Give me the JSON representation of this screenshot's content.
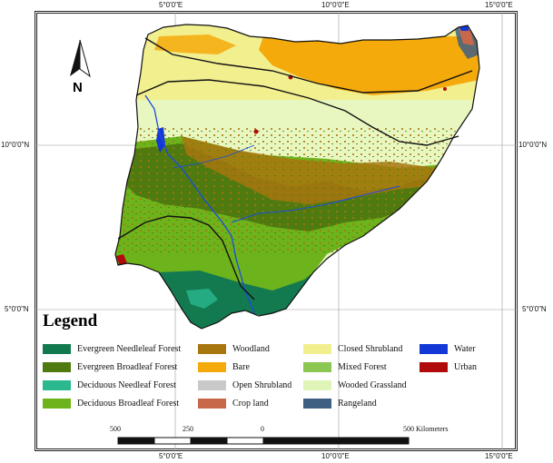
{
  "graticule": {
    "top": [
      "5°0'0\"E",
      "10°0'0\"E",
      "15°0'0\"E"
    ],
    "bottom": [
      "5°0'0\"E",
      "10°0'0\"E",
      "15°0'0\"E"
    ],
    "left": [
      "10°0'0\"N",
      "5°0'0\"N"
    ],
    "right": [
      "10°0'0\"N",
      "5°0'0\"N"
    ]
  },
  "north_arrow": {
    "letter": "N"
  },
  "legend": {
    "title": "Legend",
    "items": [
      {
        "label": "Evergreen Needleleaf Forest",
        "color": "#137a4f"
      },
      {
        "label": "Evergreen Broadleaf Forest",
        "color": "#4e7a10"
      },
      {
        "label": "Deciduous Needleaf Forest",
        "color": "#2bb88f"
      },
      {
        "label": "Deciduous Broadleaf Forest",
        "color": "#6db31c"
      },
      {
        "label": "Woodland",
        "color": "#a8760e"
      },
      {
        "label": "Bare",
        "color": "#f5aa0c"
      },
      {
        "label": "Open Shrubland",
        "color": "#c9c9c9"
      },
      {
        "label": "Crop land",
        "color": "#c7684a"
      },
      {
        "label": "Closed Shrubland",
        "color": "#f2ef8f"
      },
      {
        "label": "Mixed Forest",
        "color": "#8cc653"
      },
      {
        "label": "Wooded Grassland",
        "color": "#dff5b8"
      },
      {
        "label": "Rangeland",
        "color": "#3f5f82"
      },
      {
        "label": "Water",
        "color": "#1238d6"
      },
      {
        "label": "Urban",
        "color": "#b00a0a"
      }
    ]
  },
  "scale_bar": {
    "labels": [
      "500",
      "250",
      "0",
      "500 Kilometers"
    ]
  }
}
